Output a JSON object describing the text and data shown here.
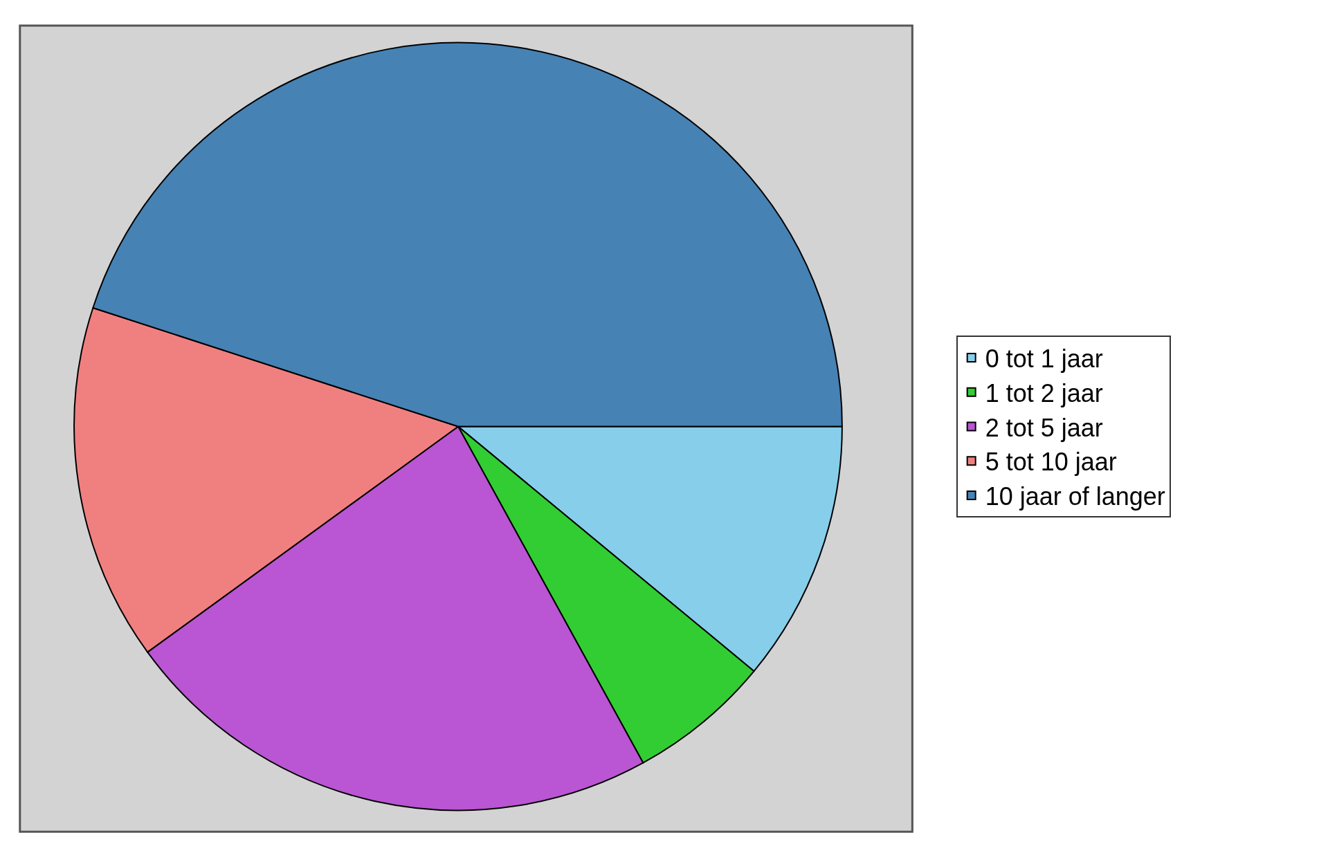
{
  "chart_data": {
    "type": "pie",
    "categories": [
      "0 tot 1 jaar",
      "1 tot 2 jaar",
      "2 tot 5 jaar",
      "5 tot 10 jaar",
      "10 jaar of langer"
    ],
    "values": [
      11,
      6,
      23,
      15,
      45
    ],
    "colors": [
      "#87ceeb",
      "#32cd32",
      "#ba55d3",
      "#f08080",
      "#4682b4"
    ],
    "legend": "right"
  }
}
